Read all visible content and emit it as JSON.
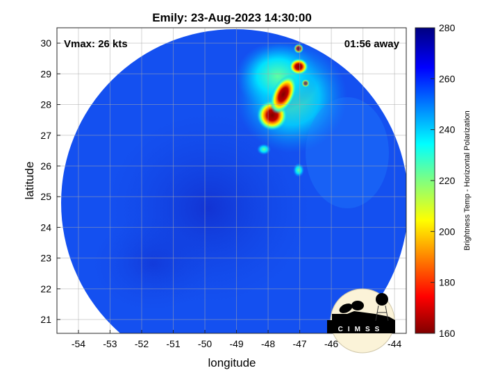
{
  "title": "Emily: 23-Aug-2023 14:30:00",
  "annotations": {
    "vmax": "Vmax: 26 kts",
    "time_away": "01:56 away"
  },
  "logo_text": "CIMSS",
  "chart_data": {
    "type": "heatmap",
    "title": "Emily: 23-Aug-2023 14:30:00",
    "xlabel": "longitude",
    "ylabel": "latitude",
    "xlim": [
      -54.68,
      -43.63
    ],
    "ylim": [
      20.55,
      30.5
    ],
    "xticks": [
      -54,
      -53,
      -52,
      -51,
      -50,
      -49,
      -48,
      -47,
      -46,
      -45,
      -44
    ],
    "yticks": [
      21,
      22,
      23,
      24,
      25,
      26,
      27,
      28,
      29,
      30
    ],
    "grid": true,
    "colorbar": {
      "label": "Brightness Temp - Horizontal Polarization",
      "range": [
        160,
        280
      ],
      "ticks": [
        160,
        180,
        200,
        220,
        240,
        260,
        280
      ],
      "colormap": "jet"
    },
    "features": [
      {
        "lon": -47.95,
        "lat": 27.6,
        "value": 165
      },
      {
        "lon": -47.6,
        "lat": 28.2,
        "value": 170
      },
      {
        "lon": -47.1,
        "lat": 29.25,
        "value": 175
      },
      {
        "lon": -47.05,
        "lat": 29.85,
        "value": 200
      }
    ]
  }
}
